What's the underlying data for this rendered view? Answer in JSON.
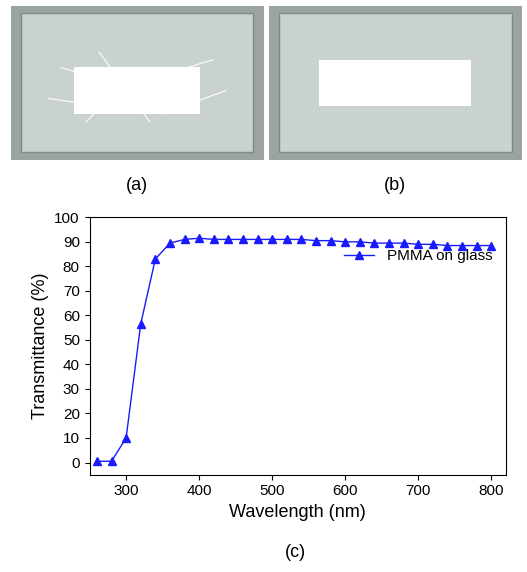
{
  "photos": [
    {
      "label": "(a)"
    },
    {
      "label": "(b)"
    }
  ],
  "chart_data": {
    "type": "line",
    "caption": "(c)",
    "x_label": "Wavelength (nm)",
    "y_label": "Transmittance (%)",
    "x": [
      260,
      280,
      300,
      320,
      340,
      360,
      380,
      400,
      420,
      440,
      460,
      480,
      500,
      520,
      540,
      560,
      580,
      600,
      620,
      640,
      660,
      680,
      700,
      720,
      740,
      760,
      780,
      800
    ],
    "series": [
      {
        "name": "PMMA on glass",
        "color": "#1a1aff",
        "marker": "triangle",
        "line_style": "solid",
        "values": [
          0.5,
          0.5,
          10,
          56.5,
          83,
          89.5,
          91,
          91.5,
          91,
          91,
          91,
          91,
          91,
          91,
          91,
          90.5,
          90.5,
          90,
          90,
          89.5,
          89.5,
          89.5,
          89,
          89,
          88.5,
          88.5,
          88.5,
          88.5
        ]
      }
    ],
    "xlim": [
      250,
      820
    ],
    "xticks": [
      300,
      400,
      500,
      600,
      700,
      800
    ],
    "ylim": [
      -5,
      100
    ],
    "yticks": [
      0,
      10,
      20,
      30,
      40,
      50,
      60,
      70,
      80,
      90,
      100
    ],
    "legend": "upper right",
    "grid": false
  }
}
